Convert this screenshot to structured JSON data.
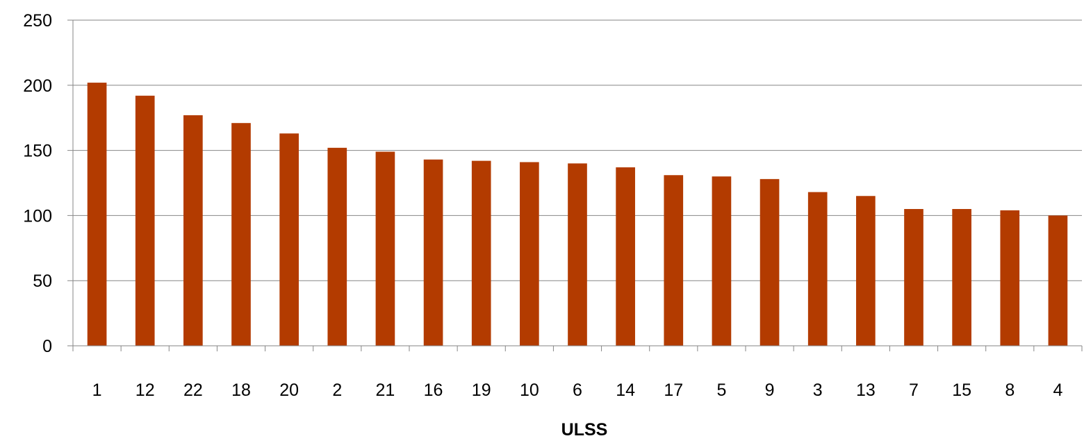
{
  "chart_data": {
    "type": "bar",
    "title": "",
    "xlabel": "ULSS",
    "ylabel": "",
    "categories": [
      "1",
      "12",
      "22",
      "18",
      "20",
      "2",
      "21",
      "16",
      "19",
      "10",
      "6",
      "14",
      "17",
      "5",
      "9",
      "3",
      "13",
      "7",
      "15",
      "8",
      "4"
    ],
    "series": [
      {
        "values": [
          202,
          192,
          177,
          171,
          163,
          152,
          149,
          143,
          142,
          141,
          140,
          137,
          131,
          130,
          128,
          118,
          115,
          105,
          105,
          104,
          100
        ]
      }
    ],
    "ylim": [
      0,
      250
    ],
    "yticks": [
      0,
      50,
      100,
      150,
      200,
      250
    ],
    "grid": true,
    "legend": "none",
    "colors": {
      "bar": "#B33B00",
      "grid": "#868686"
    }
  }
}
